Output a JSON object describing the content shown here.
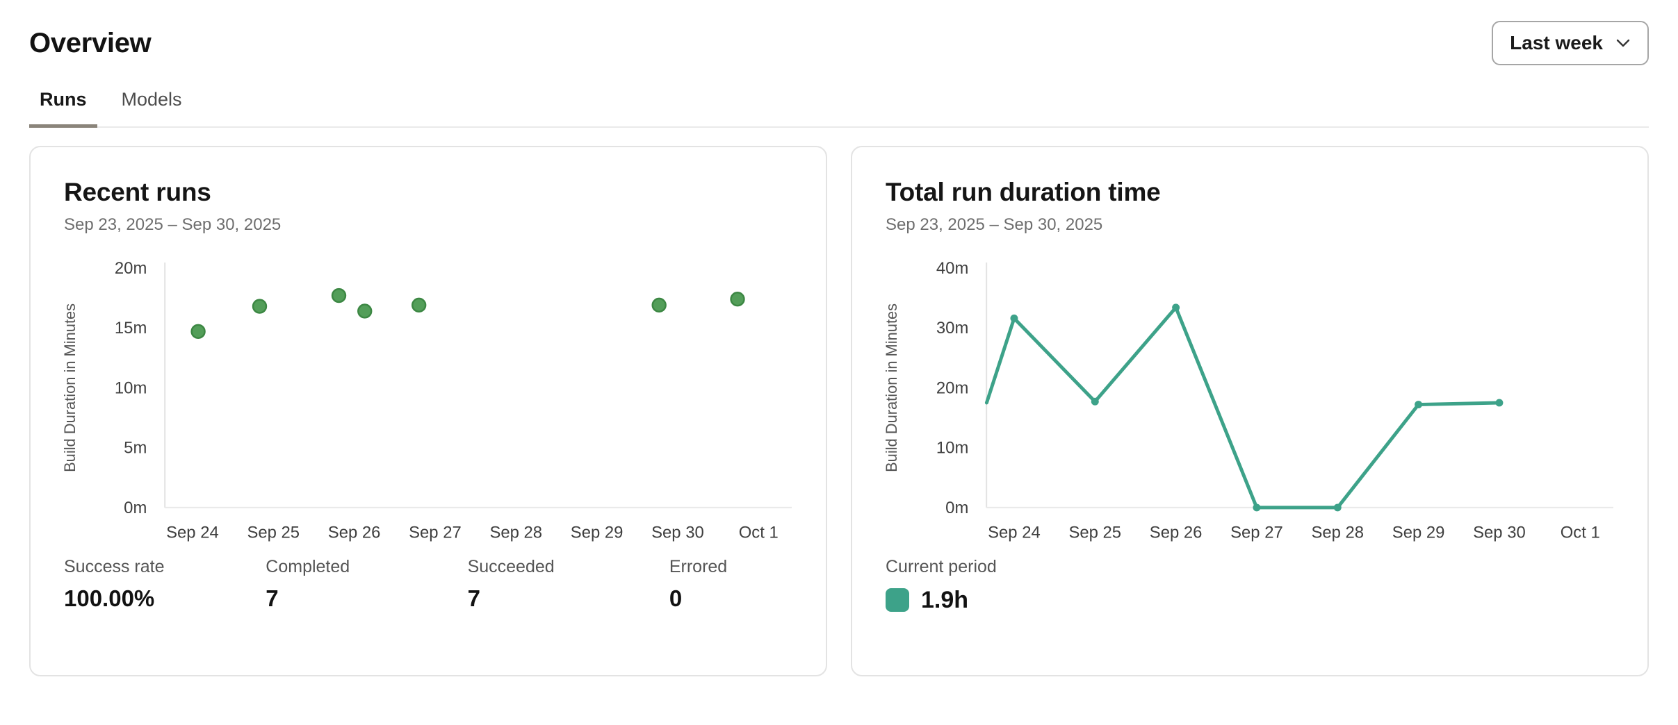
{
  "header": {
    "title": "Overview",
    "period_selector": {
      "label": "Last week"
    }
  },
  "tabs": [
    {
      "label": "Runs",
      "active": true
    },
    {
      "label": "Models",
      "active": false
    }
  ],
  "cards": {
    "recent_runs": {
      "title": "Recent runs",
      "date_range": "Sep 23, 2025 – Sep 30, 2025",
      "stats": [
        {
          "label": "Success rate",
          "value": "100.00%"
        },
        {
          "label": "Completed",
          "value": "7"
        },
        {
          "label": "Succeeded",
          "value": "7"
        },
        {
          "label": "Errored",
          "value": "0"
        }
      ]
    },
    "total_run_duration": {
      "title": "Total run duration time",
      "date_range": "Sep 23, 2025 – Sep 30, 2025",
      "legend": {
        "label": "Current period",
        "value": "1.9h",
        "swatch_color": "#3da289"
      }
    }
  },
  "chart_data": [
    {
      "type": "scatter",
      "title": "Recent runs",
      "xlabel": "",
      "ylabel": "Build Duration in Minutes",
      "unit": "minutes",
      "ylim": [
        0,
        20
      ],
      "yticks": [
        "0m",
        "5m",
        "10m",
        "15m",
        "20m"
      ],
      "x_categories": [
        "Sep 24",
        "Sep 25",
        "Sep 26",
        "Sep 27",
        "Sep 28",
        "Sep 29",
        "Sep 30",
        "Oct 1"
      ],
      "grid": false,
      "legend_position": "none",
      "points": [
        {
          "x": 0.07,
          "y": 14.7,
          "date": "Sep 24"
        },
        {
          "x": 0.83,
          "y": 16.8,
          "date": "Sep 25"
        },
        {
          "x": 1.81,
          "y": 17.7,
          "date": "Sep 26"
        },
        {
          "x": 2.13,
          "y": 16.4,
          "date": "Sep 26"
        },
        {
          "x": 2.8,
          "y": 16.9,
          "date": "Sep 27"
        },
        {
          "x": 5.77,
          "y": 16.9,
          "date": "Sep 30"
        },
        {
          "x": 6.74,
          "y": 17.4,
          "date": "Oct 1"
        }
      ],
      "point_color": "#539e59",
      "point_stroke": "#3c8743"
    },
    {
      "type": "line",
      "title": "Total run duration time",
      "xlabel": "",
      "ylabel": "Build Duration in Minutes",
      "unit": "minutes",
      "ylim": [
        0,
        40
      ],
      "yticks": [
        "0m",
        "10m",
        "20m",
        "30m",
        "40m"
      ],
      "x_categories": [
        "Sep 24",
        "Sep 25",
        "Sep 26",
        "Sep 27",
        "Sep 28",
        "Sep 29",
        "Sep 30",
        "Oct 1"
      ],
      "grid": false,
      "legend_position": "bottom-left",
      "series_name": "Current period",
      "points": [
        {
          "x": -0.34,
          "y": 17.5,
          "marker": false,
          "date": "Sep 23"
        },
        {
          "x": 0,
          "y": 31.6,
          "date": "Sep 24"
        },
        {
          "x": 1,
          "y": 17.7,
          "date": "Sep 25"
        },
        {
          "x": 2,
          "y": 33.4,
          "date": "Sep 26"
        },
        {
          "x": 3,
          "y": 0,
          "date": "Sep 27"
        },
        {
          "x": 4,
          "y": 0,
          "date": "Sep 28"
        },
        {
          "x": 5,
          "y": 17.2,
          "date": "Sep 29"
        },
        {
          "x": 6,
          "y": 17.5,
          "date": "Sep 30"
        }
      ],
      "line_color": "#3da289"
    }
  ],
  "colors": {
    "card_border": "#e3e3e3",
    "tab_underline": "#8a847a",
    "axis_line": "#e2e2e2",
    "baseline": "#e9e9e9",
    "scatter_green": "#539e59",
    "line_teal": "#3da289"
  }
}
